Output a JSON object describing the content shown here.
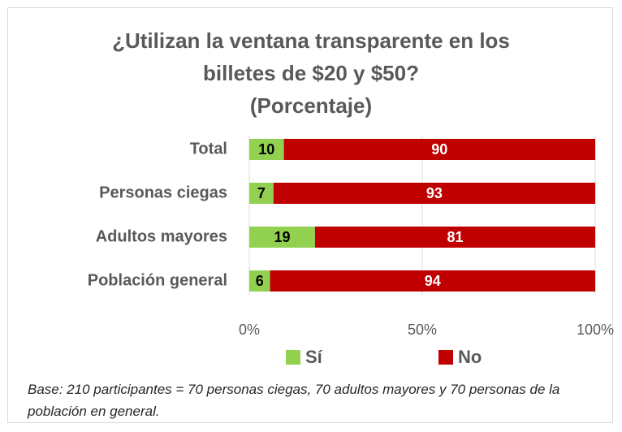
{
  "chart_data": {
    "type": "stacked_barh",
    "title": "¿Utilizan la ventana transparente en los billetes de $20 y $50?",
    "subtitle": "(Porcentaje)",
    "categories": [
      "Total",
      "Personas ciegas",
      "Adultos mayores",
      "Población general"
    ],
    "series": [
      {
        "name": "Sí",
        "color": "#92d050",
        "label_color": "#000000",
        "values": [
          10,
          7,
          19,
          6
        ]
      },
      {
        "name": "No",
        "color": "#c00000",
        "label_color": "#ffffff",
        "values": [
          90,
          93,
          81,
          94
        ]
      }
    ],
    "xlim": [
      0,
      100
    ],
    "xticks": [
      {
        "value": 0,
        "label": "0%"
      },
      {
        "value": 50,
        "label": "50%"
      },
      {
        "value": 100,
        "label": "100%"
      }
    ],
    "grid": true,
    "legend": "bottom",
    "note": "Base: 210 participantes = 70 personas ciegas, 70 adultos mayores y 70 personas de la población en general."
  }
}
